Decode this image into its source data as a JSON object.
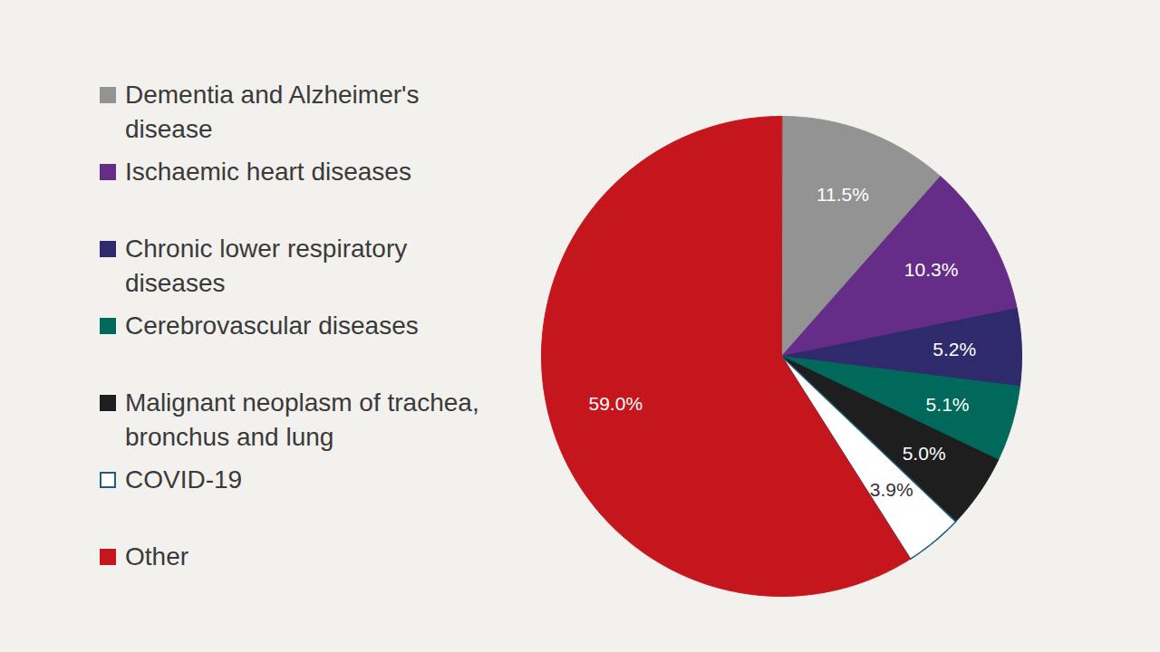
{
  "chart_data": {
    "type": "pie",
    "categories": [
      "Dementia and Alzheimer's disease",
      "Ischaemic heart diseases",
      "Chronic lower respiratory diseases",
      "Cerebrovascular diseases",
      "Malignant neoplasm of trachea, bronchus and lung",
      "COVID-19",
      "Other"
    ],
    "values": [
      11.5,
      10.3,
      5.2,
      5.1,
      5.0,
      3.9,
      59.0
    ],
    "value_labels": [
      "11.5%",
      "10.3%",
      "5.2%",
      "5.1%",
      "5.0%",
      "3.9%",
      "59.0%"
    ],
    "colors": [
      "#939393",
      "#662d88",
      "#2e2a6b",
      "#00695c",
      "#1e1e1e",
      "#ffffff",
      "#c4161c"
    ],
    "data_labels": true,
    "legend": "left"
  }
}
